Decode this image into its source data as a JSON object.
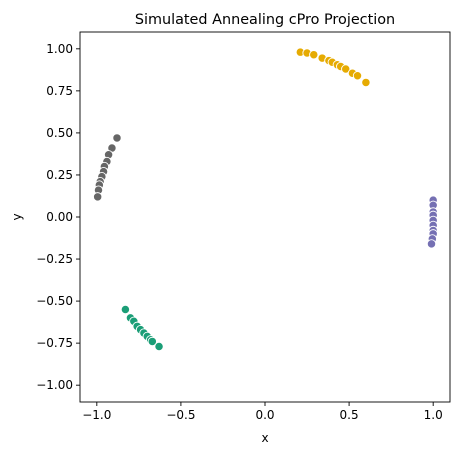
{
  "chart_data": {
    "type": "scatter",
    "title": "Simulated Annealing cPro Projection",
    "xlabel": "x",
    "ylabel": "y",
    "xlim": [
      -1.1,
      1.1
    ],
    "ylim": [
      -1.1,
      1.1
    ],
    "xticks": [
      -1.0,
      -0.5,
      0.0,
      0.5,
      1.0
    ],
    "xtick_labels": [
      "−1.0",
      "−0.5",
      "0.0",
      "0.5",
      "1.0"
    ],
    "yticks": [
      1.0,
      0.75,
      0.5,
      0.25,
      0.0,
      -0.25,
      -0.5,
      -0.75,
      -1.0
    ],
    "ytick_labels": [
      "1.00",
      "0.75",
      "0.50",
      "0.25",
      "0.00",
      "−0.25",
      "−0.50",
      "−0.75",
      "−1.00"
    ],
    "grid": false,
    "legend": "none",
    "series": [
      {
        "color": "#e6ab02",
        "points": [
          [
            0.21,
            0.98
          ],
          [
            0.25,
            0.975
          ],
          [
            0.29,
            0.965
          ],
          [
            0.34,
            0.945
          ],
          [
            0.38,
            0.93
          ],
          [
            0.4,
            0.92
          ],
          [
            0.43,
            0.905
          ],
          [
            0.45,
            0.895
          ],
          [
            0.48,
            0.88
          ],
          [
            0.52,
            0.855
          ],
          [
            0.55,
            0.84
          ],
          [
            0.6,
            0.8
          ]
        ]
      },
      {
        "color": "#666666",
        "points": [
          [
            -0.88,
            0.47
          ],
          [
            -0.91,
            0.41
          ],
          [
            -0.93,
            0.37
          ],
          [
            -0.94,
            0.33
          ],
          [
            -0.955,
            0.3
          ],
          [
            -0.96,
            0.27
          ],
          [
            -0.97,
            0.24
          ],
          [
            -0.98,
            0.21
          ],
          [
            -0.985,
            0.19
          ],
          [
            -0.99,
            0.16
          ],
          [
            -0.995,
            0.12
          ]
        ]
      },
      {
        "color": "#7570b3",
        "points": [
          [
            1.0,
            0.1
          ],
          [
            1.0,
            0.07
          ],
          [
            1.0,
            0.03
          ],
          [
            1.0,
            0.01
          ],
          [
            1.0,
            -0.02
          ],
          [
            1.0,
            -0.05
          ],
          [
            1.0,
            -0.08
          ],
          [
            1.0,
            -0.1
          ],
          [
            0.995,
            -0.13
          ],
          [
            0.99,
            -0.16
          ]
        ]
      },
      {
        "color": "#1b9e77",
        "points": [
          [
            -0.83,
            -0.55
          ],
          [
            -0.8,
            -0.6
          ],
          [
            -0.78,
            -0.62
          ],
          [
            -0.76,
            -0.65
          ],
          [
            -0.74,
            -0.67
          ],
          [
            -0.72,
            -0.69
          ],
          [
            -0.7,
            -0.71
          ],
          [
            -0.68,
            -0.73
          ],
          [
            -0.67,
            -0.74
          ],
          [
            -0.63,
            -0.77
          ]
        ]
      }
    ]
  }
}
